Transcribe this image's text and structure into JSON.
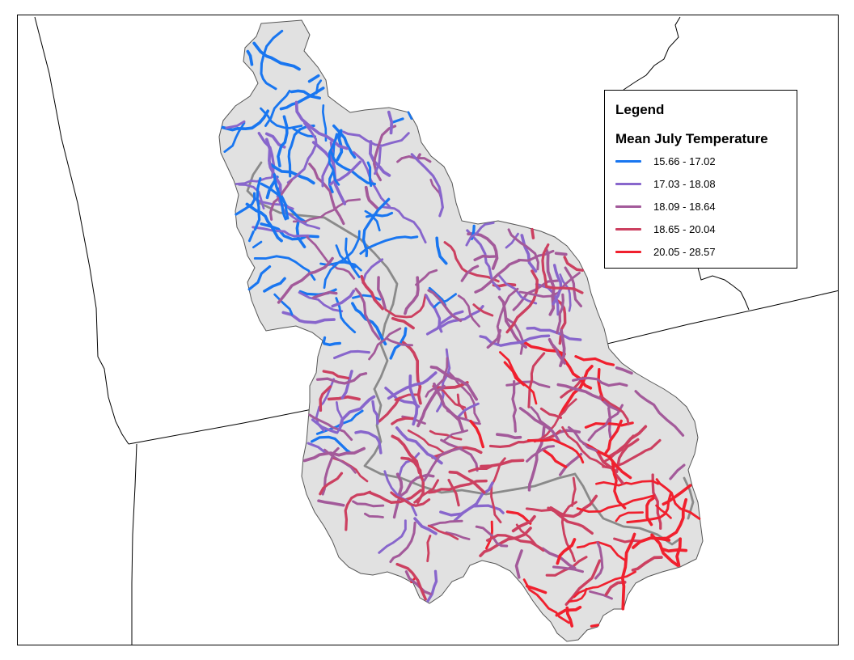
{
  "map": {
    "type": "stream temperature map",
    "basin_fill": "#e1e1e1",
    "basin_outline": "#555555",
    "unclassified_stream_color": "#8a8a8a",
    "boundary_color": "#000000"
  },
  "legend": {
    "title": "Legend",
    "subtitle": "Mean July Temperature",
    "classes": [
      {
        "label": "15.66 - 17.02",
        "color": "#1976f0"
      },
      {
        "label": "17.03 - 18.08",
        "color": "#8866cc"
      },
      {
        "label": "18.09 - 18.64",
        "color": "#a35a9a"
      },
      {
        "label": "18.65 - 20.04",
        "color": "#cc4060"
      },
      {
        "label": "20.05 - 28.57",
        "color": "#f0202e"
      }
    ]
  }
}
